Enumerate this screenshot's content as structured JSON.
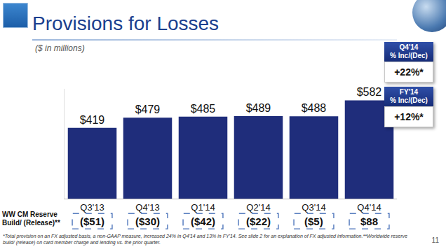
{
  "chart_data": {
    "type": "bar",
    "title": "Provisions for Losses",
    "subtitle": "($ in millions)",
    "categories": [
      "Q3'13",
      "Q4'13",
      "Q1'14",
      "Q2'14",
      "Q3'14",
      "Q4'14"
    ],
    "values": [
      419,
      479,
      485,
      489,
      488,
      582
    ],
    "value_labels": [
      "$419",
      "$479",
      "$485",
      "$489",
      "$488",
      "$582"
    ],
    "data_labels": true,
    "color": "#1f2d7b",
    "ylim": [
      0,
      650
    ],
    "grid": false,
    "tick_labels": "x",
    "reserve": {
      "label": "WW CM Reserve Build/ (Release)**",
      "labels": [
        "($51)",
        "($30)",
        "($42)",
        "($22)",
        "($5)",
        "$88"
      ]
    },
    "callouts": [
      {
        "title": [
          "Q4'14",
          "% Inc/(Dec)"
        ],
        "value": "+22%*"
      },
      {
        "title": [
          "FY'14",
          "% Inc/(Dec)"
        ],
        "value": "+12%*"
      }
    ],
    "footnote": "*Total provision on an FX adjusted basis, a non-GAAP measure, increased 24% in Q4'14 and 13% in FY'14. See slide 2 for an explanation of FX adjusted information.**Worldwide reserve build/ (release) on card member charge and lending vs. the prior quarter.",
    "page_number": "11"
  }
}
